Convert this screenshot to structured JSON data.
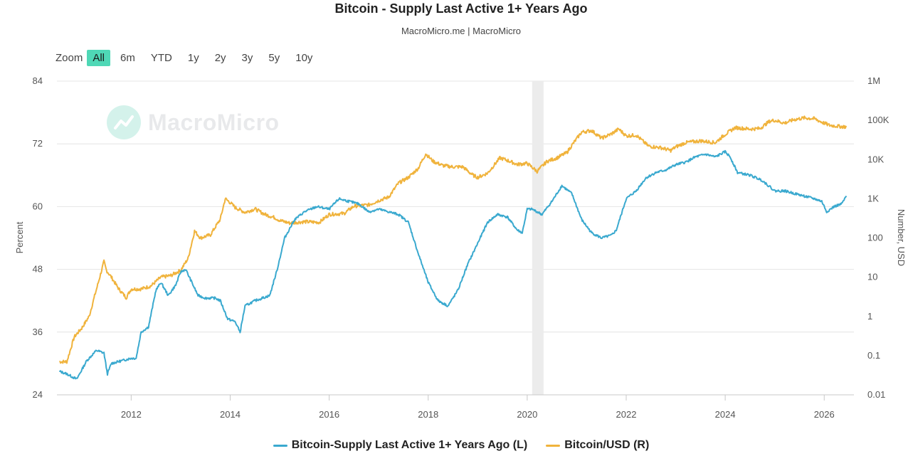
{
  "title": "Bitcoin - Supply Last Active 1+ Years Ago",
  "subtitle": "MacroMicro.me | MacroMicro",
  "watermark": "MacroMicro",
  "zoom": {
    "label": "Zoom",
    "buttons": [
      "All",
      "6m",
      "YTD",
      "1y",
      "2y",
      "3y",
      "5y",
      "10y"
    ],
    "active": "All"
  },
  "colors": {
    "supply": "#3aa9cf",
    "price": "#f0b33c",
    "zoom_active": "#4fd8b6",
    "shade": "#ececec",
    "grid": "#e4e4e4"
  },
  "legend": [
    {
      "label": "Bitcoin-Supply Last Active 1+ Years Ago (L)",
      "color": "#3aa9cf"
    },
    {
      "label": "Bitcoin/USD (R)",
      "color": "#f0b33c"
    }
  ],
  "chart_data": {
    "type": "line",
    "x_range": [
      2010.5,
      2026.6
    ],
    "x_ticks": [
      "2012",
      "2014",
      "2016",
      "2018",
      "2020",
      "2022",
      "2024",
      "2026"
    ],
    "x_tick_values": [
      2012,
      2014,
      2016,
      2018,
      2020,
      2022,
      2024,
      2026
    ],
    "shaded_region": [
      2020.1,
      2020.33
    ],
    "y_left": {
      "label": "Percent",
      "range": [
        24,
        84
      ],
      "ticks": [
        "24",
        "36",
        "48",
        "60",
        "72",
        "84"
      ],
      "tick_values": [
        24,
        36,
        48,
        60,
        72,
        84
      ]
    },
    "y_right": {
      "label": "Number, USD",
      "scale": "log",
      "range": [
        0.01,
        1000000
      ],
      "ticks": [
        "0.01",
        "0.1",
        "1",
        "10",
        "100",
        "1K",
        "10K",
        "100K",
        "1M"
      ],
      "tick_values": [
        0.01,
        0.1,
        1,
        10,
        100,
        1000,
        10000,
        100000,
        1000000
      ]
    },
    "series": [
      {
        "name": "Bitcoin-Supply Last Active 1+ Years Ago (L)",
        "axis": "left",
        "x": [
          2010.55,
          2010.7,
          2010.9,
          2011.1,
          2011.3,
          2011.45,
          2011.52,
          2011.6,
          2011.8,
          2012.0,
          2012.1,
          2012.2,
          2012.35,
          2012.5,
          2012.6,
          2012.75,
          2012.9,
          2013.0,
          2013.1,
          2013.2,
          2013.35,
          2013.5,
          2013.7,
          2013.8,
          2013.95,
          2014.1,
          2014.2,
          2014.3,
          2014.5,
          2014.8,
          2014.95,
          2015.1,
          2015.3,
          2015.5,
          2015.75,
          2016.0,
          2016.2,
          2016.4,
          2016.6,
          2016.8,
          2017.0,
          2017.2,
          2017.4,
          2017.6,
          2017.8,
          2018.0,
          2018.2,
          2018.4,
          2018.6,
          2018.8,
          2019.0,
          2019.2,
          2019.4,
          2019.6,
          2019.8,
          2019.9,
          2020.0,
          2020.1,
          2020.3,
          2020.5,
          2020.7,
          2020.9,
          2021.1,
          2021.3,
          2021.5,
          2021.7,
          2021.8,
          2022.0,
          2022.2,
          2022.4,
          2022.6,
          2022.8,
          2023.0,
          2023.2,
          2023.4,
          2023.6,
          2023.8,
          2024.0,
          2024.1,
          2024.25,
          2024.5,
          2024.75,
          2025.0,
          2025.2,
          2025.4,
          2025.6,
          2025.8,
          2025.95,
          2026.05,
          2026.2,
          2026.35,
          2026.45
        ],
        "values": [
          28.5,
          28.0,
          27.0,
          30.5,
          32.5,
          32.0,
          28.0,
          30.0,
          30.5,
          31.0,
          31.0,
          36.0,
          37.0,
          44.0,
          45.5,
          43.0,
          45.0,
          47.5,
          48.0,
          46.0,
          43.0,
          42.5,
          42.5,
          42.0,
          38.5,
          38.0,
          36.0,
          41.0,
          42.0,
          43.0,
          48.0,
          54.0,
          57.5,
          59.0,
          60.0,
          59.5,
          61.5,
          61.0,
          60.5,
          59.0,
          59.5,
          59.0,
          58.5,
          57.0,
          51.0,
          45.5,
          42.0,
          41.0,
          44.0,
          49.0,
          53.0,
          57.0,
          58.5,
          58.0,
          55.5,
          55.0,
          59.5,
          59.5,
          58.5,
          61.0,
          64.0,
          62.5,
          57.5,
          55.0,
          54.0,
          54.5,
          55.5,
          61.5,
          63.0,
          65.5,
          66.5,
          67.0,
          68.0,
          68.5,
          69.5,
          70.0,
          69.5,
          70.5,
          69.5,
          66.5,
          66.0,
          65.0,
          63.0,
          63.0,
          62.5,
          62.0,
          61.5,
          61.0,
          59.0,
          60.0,
          60.5,
          62.0
        ]
      },
      {
        "name": "Bitcoin/USD (R)",
        "axis": "right",
        "x": [
          2010.55,
          2010.7,
          2010.85,
          2011.0,
          2011.15,
          2011.3,
          2011.45,
          2011.5,
          2011.6,
          2011.75,
          2011.9,
          2012.0,
          2012.2,
          2012.4,
          2012.6,
          2012.8,
          2013.0,
          2013.15,
          2013.28,
          2013.4,
          2013.6,
          2013.8,
          2013.9,
          2014.0,
          2014.1,
          2014.3,
          2014.5,
          2014.7,
          2014.9,
          2015.0,
          2015.2,
          2015.5,
          2015.8,
          2016.0,
          2016.3,
          2016.5,
          2016.8,
          2017.0,
          2017.2,
          2017.4,
          2017.6,
          2017.8,
          2017.95,
          2018.1,
          2018.3,
          2018.5,
          2018.7,
          2018.9,
          2019.0,
          2019.2,
          2019.45,
          2019.6,
          2019.8,
          2020.0,
          2020.2,
          2020.4,
          2020.6,
          2020.8,
          2020.95,
          2021.1,
          2021.3,
          2021.5,
          2021.7,
          2021.85,
          2022.0,
          2022.2,
          2022.45,
          2022.7,
          2022.9,
          2023.0,
          2023.2,
          2023.5,
          2023.8,
          2024.0,
          2024.2,
          2024.5,
          2024.7,
          2024.9,
          2025.0,
          2025.2,
          2025.4,
          2025.6,
          2025.8,
          2025.95,
          2026.1,
          2026.3,
          2026.45
        ],
        "values": [
          0.07,
          0.07,
          0.3,
          0.5,
          1.0,
          5.0,
          25.0,
          15.0,
          10.0,
          5.0,
          3.0,
          5.0,
          5.0,
          6.0,
          10.0,
          11.0,
          15.0,
          30.0,
          150.0,
          100.0,
          120.0,
          300.0,
          1000.0,
          800.0,
          600.0,
          450.0,
          550.0,
          400.0,
          330.0,
          280.0,
          240.0,
          260.0,
          250.0,
          400.0,
          420.0,
          650.0,
          700.0,
          900.0,
          1100.0,
          2500.0,
          3500.0,
          6000.0,
          14000.0,
          9000.0,
          7000.0,
          6500.0,
          6500.0,
          4000.0,
          3500.0,
          4500.0,
          11000.0,
          9500.0,
          7500.0,
          8000.0,
          5000.0,
          9000.0,
          11000.0,
          15000.0,
          28000.0,
          50000.0,
          55000.0,
          35000.0,
          45000.0,
          60000.0,
          40000.0,
          42000.0,
          22000.0,
          20000.0,
          17000.0,
          21000.0,
          27000.0,
          30000.0,
          27000.0,
          44000.0,
          65000.0,
          60000.0,
          62000.0,
          95000.0,
          100000.0,
          85000.0,
          105000.0,
          115000.0,
          110000.0,
          90000.0,
          75000.0,
          70000.0,
          68000.0
        ]
      }
    ]
  }
}
